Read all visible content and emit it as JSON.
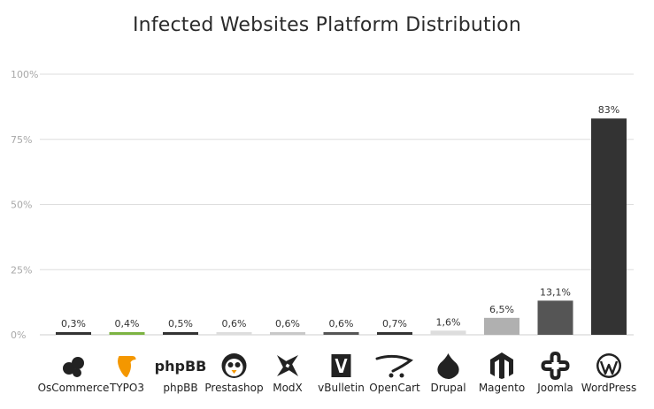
{
  "chart_data": {
    "type": "bar",
    "title": "Infected Websites Platform Distribution",
    "xlabel": "",
    "ylabel": "",
    "ylim": [
      0,
      100
    ],
    "yticks": [
      "0%",
      "25%",
      "50%",
      "75%",
      "100%"
    ],
    "ytick_values": [
      0,
      25,
      50,
      75,
      100
    ],
    "grid": true,
    "categories": [
      "OsCommerce",
      "TYPO3",
      "phpBB",
      "Prestashop",
      "ModX",
      "vBulletin",
      "OpenCart",
      "Drupal",
      "Magento",
      "Joomla",
      "WordPress"
    ],
    "values": [
      0.3,
      0.4,
      0.5,
      0.6,
      0.6,
      0.6,
      0.7,
      1.6,
      6.5,
      13.1,
      83
    ],
    "value_labels": [
      "0,3%",
      "0,4%",
      "0,5%",
      "0,6%",
      "0,6%",
      "0,6%",
      "0,7%",
      "1,6%",
      "6,5%",
      "13,1%",
      "83%"
    ],
    "bar_colors": [
      "#333333",
      "#7cb342",
      "#333333",
      "#dddddd",
      "#c8c8c8",
      "#555555",
      "#333333",
      "#dddddd",
      "#b0b0b0",
      "#555555",
      "#333333"
    ],
    "icons": [
      "oscommerce-icon",
      "typo3-icon",
      "phpbb-icon",
      "prestashop-icon",
      "modx-icon",
      "vbulletin-icon",
      "opencart-icon",
      "drupal-icon",
      "magento-icon",
      "joomla-icon",
      "wordpress-icon"
    ],
    "logo_text": {
      "phpbb": "phpBB"
    }
  }
}
